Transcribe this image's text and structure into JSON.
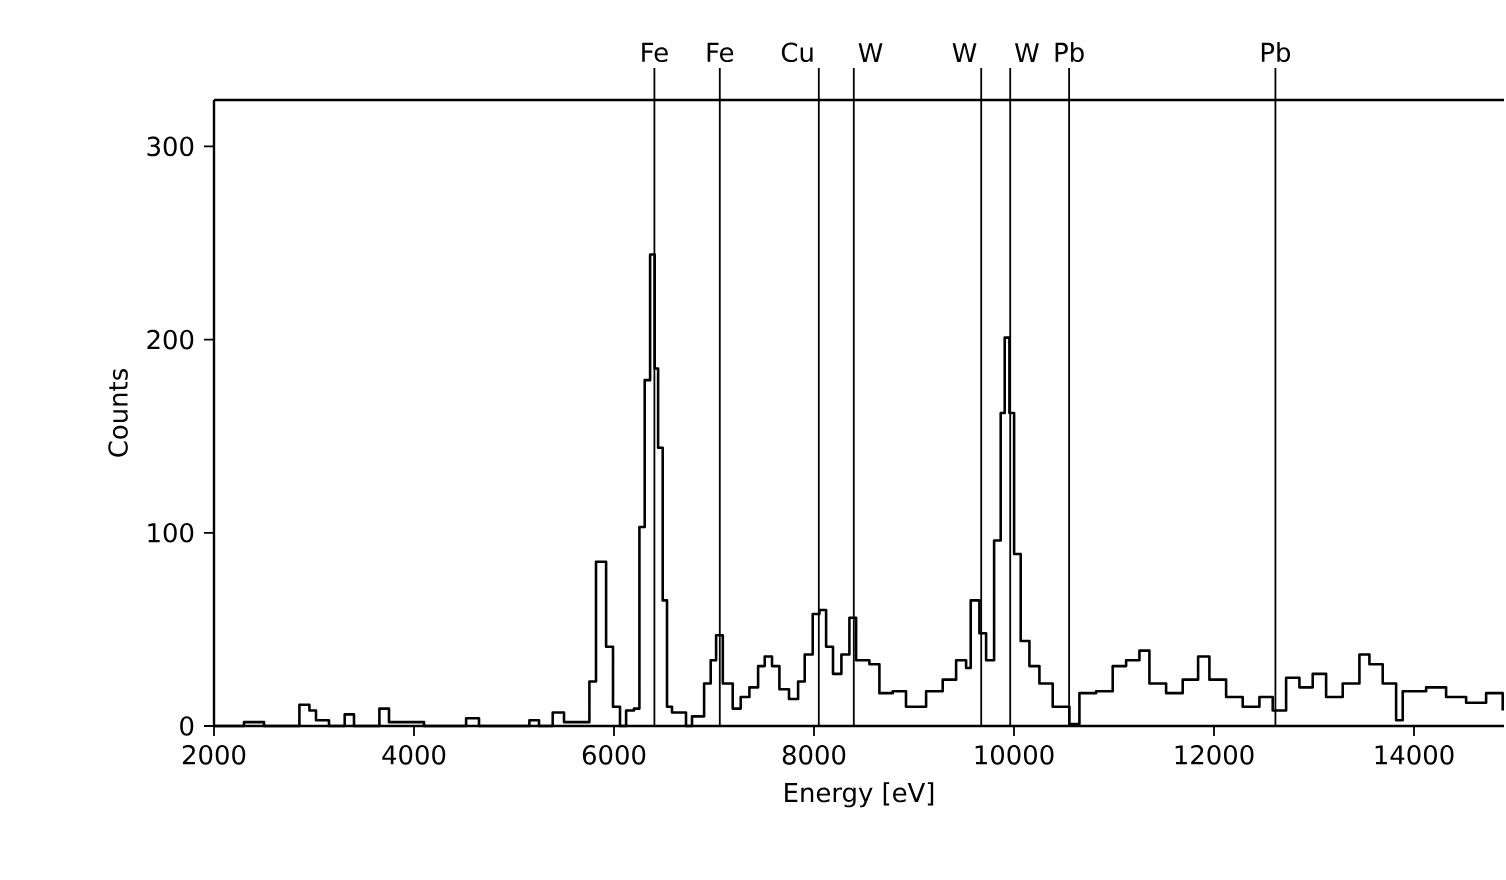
{
  "chart_data": {
    "type": "step",
    "xlabel": "Energy [eV]",
    "ylabel": "Counts",
    "xlim": [
      2000,
      14900
    ],
    "ylim": [
      0,
      324
    ],
    "xticks": [
      2000,
      4000,
      6000,
      8000,
      10000,
      12000,
      14000
    ],
    "yticks": [
      0,
      100,
      200,
      300
    ],
    "marker": "none",
    "line_style": "solid",
    "grid": false,
    "series": [
      {
        "color": "#000000",
        "x": [
          2000,
          2300,
          2500,
          2720,
          2854,
          2954,
          3020,
          3150,
          3307,
          3400,
          3654,
          3750,
          3954,
          4100,
          4400,
          4521,
          4650,
          5154,
          5250,
          5387,
          5500,
          5650,
          5754,
          5820,
          5870,
          5921,
          5990,
          6060,
          6121,
          6200,
          6254,
          6307,
          6361,
          6407,
          6441,
          6487,
          6530,
          6580,
          6720,
          6780,
          6901,
          6967,
          7021,
          7088,
          7187,
          7267,
          7354,
          7441,
          7507,
          7580,
          7654,
          7750,
          7841,
          7907,
          7987,
          8054,
          8121,
          8190,
          8274,
          8354,
          8421,
          8554,
          8654,
          8787,
          8920,
          9121,
          9287,
          9421,
          9521,
          9567,
          9654,
          9721,
          9801,
          9867,
          9907,
          9954,
          10001,
          10067,
          10154,
          10254,
          10387,
          10554,
          10654,
          10821,
          10987,
          11121,
          11254,
          11354,
          11521,
          11687,
          11841,
          11954,
          12121,
          12287,
          12454,
          12587,
          12721,
          12854,
          12987,
          13121,
          13287,
          13454,
          13554,
          13687,
          13821,
          13887,
          14121,
          14321,
          14521,
          14721,
          14887
        ],
        "values": [
          0,
          2,
          0,
          0,
          11,
          8,
          3,
          0,
          6,
          0,
          9,
          2,
          2,
          0,
          0,
          4,
          0,
          3,
          0,
          7,
          2,
          2,
          23,
          85,
          85,
          41,
          10,
          0,
          8,
          9,
          103,
          179,
          244,
          185,
          144,
          65,
          10,
          7,
          0,
          5,
          22,
          34,
          47,
          22,
          9,
          15,
          20,
          31,
          36,
          31,
          19,
          14,
          23,
          37,
          58,
          60,
          41,
          27,
          37,
          56,
          34,
          32,
          17,
          18,
          10,
          18,
          24,
          34,
          30,
          65,
          48,
          34,
          96,
          162,
          201,
          162,
          89,
          44,
          31,
          22,
          10,
          1,
          17,
          18,
          31,
          34,
          39,
          22,
          17,
          24,
          36,
          24,
          15,
          10,
          15,
          8,
          25,
          20,
          27,
          15,
          22,
          37,
          32,
          22,
          3,
          18,
          20,
          15,
          12,
          17,
          8
        ]
      }
    ],
    "ref_lines": [
      {
        "axis": "x",
        "value": 6404,
        "label": "Fe",
        "color": "#000000"
      },
      {
        "axis": "x",
        "value": 7058,
        "label": "Fe",
        "color": "#000000"
      },
      {
        "axis": "x",
        "value": 8048,
        "label": "Cu",
        "color": "#000000"
      },
      {
        "axis": "x",
        "value": 8398,
        "label": "W",
        "color": "#000000"
      },
      {
        "axis": "x",
        "value": 9672,
        "label": "W",
        "color": "#000000"
      },
      {
        "axis": "x",
        "value": 9962,
        "label": "W",
        "color": "#000000"
      },
      {
        "axis": "x",
        "value": 10551,
        "label": "Pb",
        "color": "#000000"
      },
      {
        "axis": "x",
        "value": 12614,
        "label": "Pb",
        "color": "#000000"
      }
    ]
  }
}
